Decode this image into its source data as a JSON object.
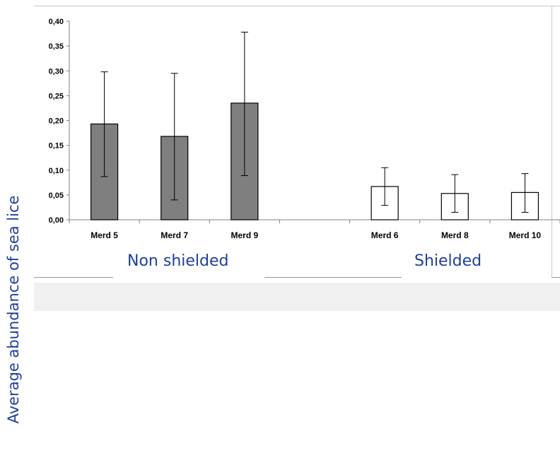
{
  "chart_data": {
    "type": "bar",
    "ylabel": "Average abundance of sea lice",
    "ylim": [
      0,
      0.4
    ],
    "yticks": [
      "0,00",
      "0,05",
      "0,10",
      "0,15",
      "0,20",
      "0,25",
      "0,30",
      "0,35",
      "0,40"
    ],
    "grid": false,
    "categories": [
      "Merd 5",
      "Merd 7",
      "Merd 9",
      "",
      "Merd 6",
      "Merd 8",
      "Merd 10"
    ],
    "values": [
      0.193,
      0.168,
      0.235,
      null,
      0.067,
      0.053,
      0.055
    ],
    "error_low": [
      0.087,
      0.04,
      0.089,
      null,
      0.029,
      0.015,
      0.015
    ],
    "error_high": [
      0.298,
      0.295,
      0.378,
      null,
      0.105,
      0.091,
      0.093
    ],
    "bar_fill": [
      "#7f7f7f",
      "#7f7f7f",
      "#7f7f7f",
      null,
      "#ffffff",
      "#ffffff",
      "#ffffff"
    ],
    "groups": [
      {
        "label": "Non shielded"
      },
      {
        "label": "Shielded"
      }
    ]
  },
  "colors": {
    "label_text": "#1f3f9a",
    "shielded_fill": "#ffffff",
    "non_shielded_fill": "#7f7f7f"
  }
}
